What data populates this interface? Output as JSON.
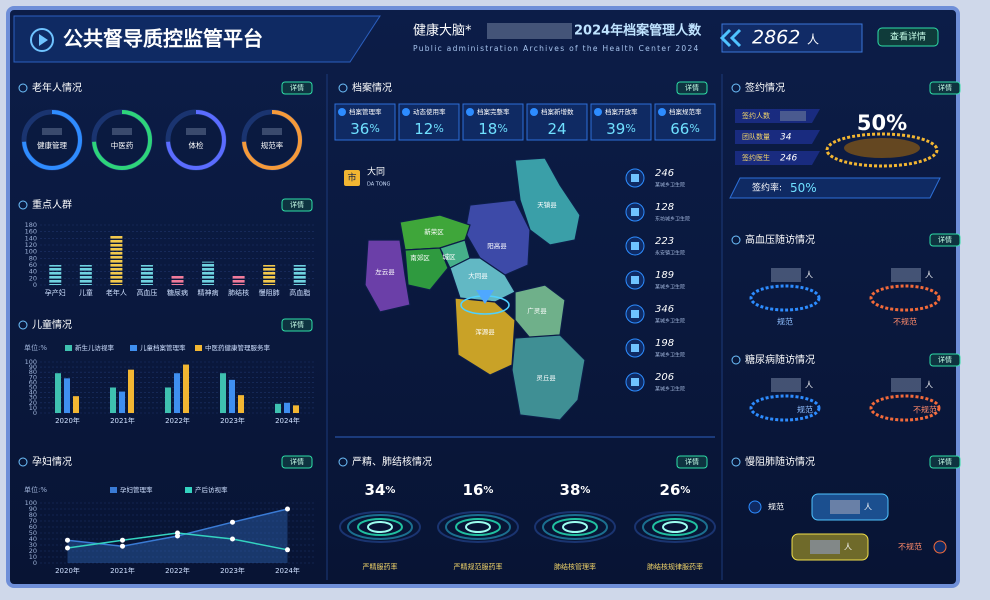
{
  "header": {
    "title": "公共督导质控监管平台",
    "banner_prefix": "健康大脑*",
    "banner_title": "2024年档案管理人数",
    "banner_subtitle": "Public administration Archives of the Health Center 2024",
    "count": 2862,
    "count_unit": "人",
    "button": "查看详情"
  },
  "elderly": {
    "title": "老年人情况",
    "button": "详情",
    "rings": [
      {
        "label": "健康管理",
        "color": "#2f8cff"
      },
      {
        "label": "中医药",
        "color": "#2ed47a"
      },
      {
        "label": "体检",
        "color": "#5b6cff"
      },
      {
        "label": "规范率",
        "color": "#f59a3a"
      }
    ]
  },
  "key_groups": {
    "title": "重点人群",
    "button": "详情",
    "type": "bar",
    "categories": [
      "孕产妇",
      "儿童",
      "老年人",
      "高血压",
      "糖尿病",
      "精神病",
      "肺结核",
      "慢阻肺",
      "高血脂"
    ],
    "values": [
      60,
      60,
      150,
      60,
      30,
      70,
      30,
      60,
      60
    ],
    "colors": [
      "#6fd3e0",
      "#6fd3e0",
      "#f2c94c",
      "#6fd3e0",
      "#f07a9a",
      "#6fd3e0",
      "#f07a9a",
      "#f2c94c",
      "#6fd3e0"
    ],
    "ylim": [
      0,
      180
    ],
    "yticks": [
      0,
      20,
      40,
      60,
      80,
      100,
      120,
      140,
      160,
      180
    ]
  },
  "children": {
    "title": "儿童情况",
    "button": "详情",
    "unit": "单位:%",
    "type": "bar",
    "categories": [
      "2020年",
      "2021年",
      "2022年",
      "2023年",
      "2024年"
    ],
    "series": [
      {
        "name": "新生儿访视率",
        "color": "#3fc1b0",
        "values": [
          78,
          50,
          50,
          78,
          18
        ]
      },
      {
        "name": "儿童档案管理率",
        "color": "#3f8ff0",
        "values": [
          68,
          42,
          78,
          65,
          20
        ]
      },
      {
        "name": "中医药健康管理服务率",
        "color": "#f2b632",
        "values": [
          33,
          85,
          95,
          35,
          15
        ]
      }
    ],
    "ylim": [
      0,
      100
    ],
    "yticks": [
      0,
      10,
      20,
      30,
      40,
      50,
      60,
      70,
      80,
      90,
      100
    ]
  },
  "pregnant": {
    "title": "孕妇情况",
    "button": "详情",
    "unit": "单位:%",
    "type": "line",
    "categories": [
      "2020年",
      "2021年",
      "2022年",
      "2023年",
      "2024年"
    ],
    "series": [
      {
        "name": "孕妇管理率",
        "color": "#3a7bd5",
        "values": [
          38,
          28,
          45,
          68,
          90
        ]
      },
      {
        "name": "产后访视率",
        "color": "#34d3c0",
        "values": [
          25,
          38,
          50,
          40,
          22
        ]
      }
    ],
    "ylim": [
      0,
      100
    ],
    "yticks": [
      0,
      10,
      20,
      30,
      40,
      50,
      60,
      70,
      80,
      90,
      100
    ]
  },
  "archives": {
    "title": "档案情况",
    "button": "详情",
    "stats": [
      {
        "label": "档案管理率",
        "value": 36,
        "unit": "%"
      },
      {
        "label": "动态使用率",
        "value": 12,
        "unit": "%"
      },
      {
        "label": "档案完整率",
        "value": 18,
        "unit": "%"
      },
      {
        "label": "档案新增数",
        "value": 24
      },
      {
        "label": "档案开放率",
        "value": 39,
        "unit": "%"
      },
      {
        "label": "档案规范率",
        "value": 66,
        "unit": "%"
      }
    ],
    "map": {
      "city_badge": "市",
      "city": "大同",
      "city_pinyin": "DA TONG",
      "districts": [
        {
          "name": "天镇县",
          "color": "#3a9fa8"
        },
        {
          "name": "阳高县",
          "color": "#3d4aa8"
        },
        {
          "name": "新荣区",
          "color": "#3fa63a"
        },
        {
          "name": "左云县",
          "color": "#6b3fa8"
        },
        {
          "name": "南郊区",
          "color": "#2f9a3f"
        },
        {
          "name": "城区",
          "color": "#46b08a"
        },
        {
          "name": "大同县",
          "color": "#62b8c4"
        },
        {
          "name": "广灵县",
          "color": "#6fb08a"
        },
        {
          "name": "浑源县",
          "color": "#c9a227"
        },
        {
          "name": "灵丘县",
          "color": "#3f8f94"
        }
      ]
    },
    "facilities": [
      {
        "value": 246,
        "label": "某城乡卫生院"
      },
      {
        "value": 128,
        "label": "东坊城乡卫生院"
      },
      {
        "value": 223,
        "label": "永安镇卫生院"
      },
      {
        "value": 189,
        "label": "某城乡卫生院"
      },
      {
        "value": 346,
        "label": "某城乡卫生院"
      },
      {
        "value": 198,
        "label": "某城乡卫生院"
      },
      {
        "value": 206,
        "label": "某城乡卫生院"
      }
    ]
  },
  "mental_tb": {
    "title": "严精、肺结核情况",
    "button": "详情",
    "gauges": [
      {
        "value": 34,
        "unit": "%",
        "label": "严精服药率"
      },
      {
        "value": 16,
        "unit": "%",
        "label": "严精规范服药率"
      },
      {
        "value": 38,
        "unit": "%",
        "label": "肺结核管理率"
      },
      {
        "value": 26,
        "unit": "%",
        "label": "肺结核规律服药率"
      }
    ]
  },
  "signing": {
    "title": "签约情况",
    "button": "详情",
    "rows": [
      {
        "label": "签约人数"
      },
      {
        "label": "团队数量",
        "value": 34
      },
      {
        "label": "签约医生",
        "value": 246
      }
    ],
    "rate": 50,
    "unit": "%",
    "rate_label": "签约率:"
  },
  "hypertension": {
    "title": "高血压随访情况",
    "button": "详情",
    "normal": "规范",
    "abnormal": "不规范",
    "unit": "人"
  },
  "diabetes": {
    "title": "糖尿病随访情况",
    "button": "详情",
    "normal": "规范",
    "abnormal": "不规范",
    "unit": "人"
  },
  "copd": {
    "title": "慢阻肺随访情况",
    "button": "详情",
    "normal": "规范",
    "abnormal": "不规范",
    "unit": "人"
  }
}
